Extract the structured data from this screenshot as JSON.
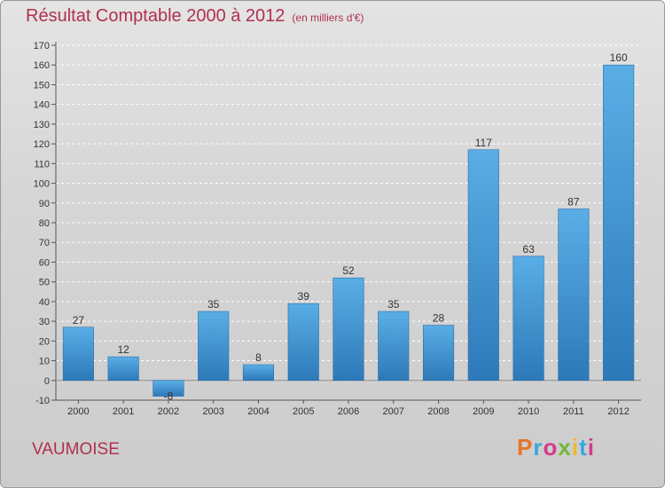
{
  "header": {
    "title": "Résultat Comptable 2000 à 2012",
    "subtitle": "(en milliers d'€)"
  },
  "footer": {
    "place": "VAUMOISE",
    "logo": "Proxiti",
    "logo_colors": [
      "#e8742a",
      "#3aa6de",
      "#d23c8a",
      "#72b73a",
      "#f0b72f",
      "#3aa6de",
      "#d23c8a"
    ]
  },
  "chart_data": {
    "type": "bar",
    "title": "Résultat Comptable 2000 à 2012",
    "subtitle": "(en milliers d'€)",
    "categories": [
      "2000",
      "2001",
      "2002",
      "2003",
      "2004",
      "2005",
      "2006",
      "2007",
      "2008",
      "2009",
      "2010",
      "2011",
      "2012"
    ],
    "values": [
      27,
      12,
      -8,
      35,
      8,
      39,
      52,
      35,
      28,
      117,
      63,
      87,
      160
    ],
    "ylim": [
      -10,
      170
    ],
    "yticks": [
      -10,
      0,
      10,
      20,
      30,
      40,
      50,
      60,
      70,
      80,
      90,
      100,
      110,
      120,
      130,
      140,
      150,
      160,
      170
    ],
    "xlabel": "",
    "ylabel": "",
    "grid": "horizontal dashed",
    "bar_color": "#4a9fdc",
    "bar_color_dark": "#2f7fc0"
  }
}
